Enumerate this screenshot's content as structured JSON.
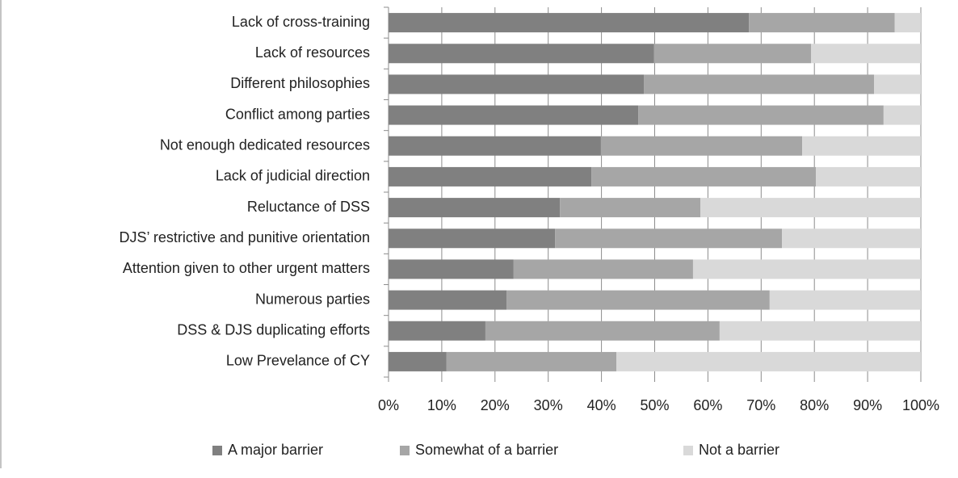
{
  "chart_data": {
    "type": "stacked_barh",
    "categories": [
      "Lack of cross-training",
      "Lack of resources",
      "Different philosophies",
      "Conflict among parties",
      "Not enough dedicated resources",
      "Lack of judicial direction",
      "Reluctance of DSS",
      "DJS’ restrictive and punitive orientation",
      "Attention given to other urgent matters",
      "Numerous parties",
      "DSS & DJS duplicating efforts",
      "Low Prevelance of CY"
    ],
    "series": [
      {
        "name": "A major barrier",
        "color": "#808080",
        "values": [
          67.7,
          49.9,
          48.0,
          46.9,
          39.9,
          38.1,
          32.2,
          31.3,
          23.5,
          22.2,
          18.2,
          10.9
        ]
      },
      {
        "name": "Somewhat of a barrier",
        "color": "#a6a6a6",
        "values": [
          27.4,
          29.5,
          43.2,
          46.1,
          37.8,
          42.2,
          26.4,
          42.6,
          33.7,
          49.4,
          44.0,
          31.9
        ]
      },
      {
        "name": "Not a barrier",
        "color": "#d9d9d9",
        "values": [
          4.9,
          20.6,
          8.8,
          7.0,
          22.3,
          19.7,
          41.4,
          26.1,
          42.8,
          28.4,
          37.8,
          57.2
        ]
      }
    ],
    "xlim": [
      0,
      100
    ],
    "xticks": [
      {
        "value": 0,
        "label": "0%"
      },
      {
        "value": 10,
        "label": "10%"
      },
      {
        "value": 20,
        "label": "20%"
      },
      {
        "value": 30,
        "label": "30%"
      },
      {
        "value": 40,
        "label": "40%"
      },
      {
        "value": 50,
        "label": "50%"
      },
      {
        "value": 60,
        "label": "60%"
      },
      {
        "value": 70,
        "label": "70%"
      },
      {
        "value": 80,
        "label": "80%"
      },
      {
        "value": 90,
        "label": "90%"
      },
      {
        "value": 100,
        "label": "100%"
      }
    ],
    "grid": true,
    "legend": "bottom"
  }
}
